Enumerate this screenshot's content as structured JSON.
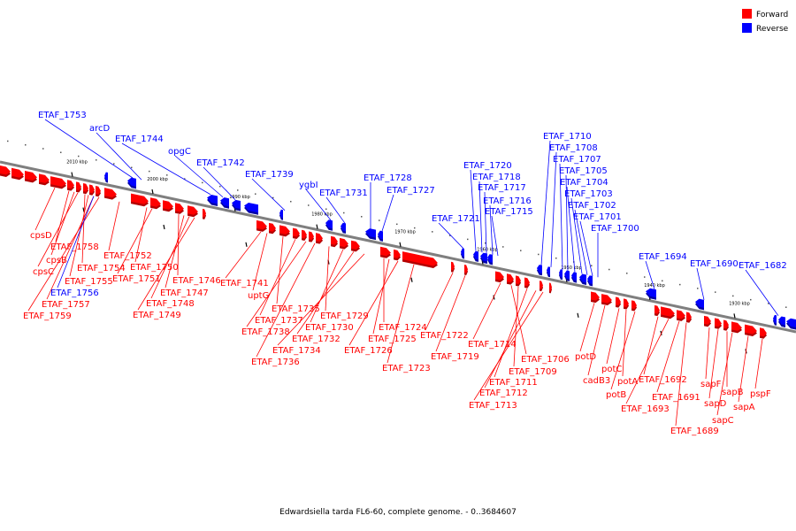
{
  "caption": "Edwardsiella tarda FL6-60, complete genome. - 0..3684607",
  "legend": [
    {
      "label": "Forward",
      "color": "#ff0000"
    },
    {
      "label": "Reverse",
      "color": "#0000ff"
    }
  ],
  "colors": {
    "forward": "#ff0000",
    "reverse": "#0000ff",
    "axis": "#7f7f7f"
  },
  "scale_labels": [
    "2010 kbp",
    "2000 kbp",
    "1990 kbp",
    "1980 kbp",
    "1970 kbp",
    "1960 kbp",
    "1950 kbp",
    "1940 kbp",
    "1930 kbp"
  ],
  "forward_labels": [
    "cpsD",
    "ETAF_1758",
    "cpsB",
    "cpsC",
    "ETAF_1754",
    "ETAF_1755",
    "ETAF_1757",
    "ETAF_1759",
    "ETAF_1752",
    "ETAF_1750",
    "ETAF_1751",
    "ETAF_1746",
    "ETAF_1747",
    "ETAF_1748",
    "ETAF_1749",
    "ETAF_1741",
    "uptG",
    "ETAF_1735",
    "ETAF_1737",
    "ETAF_1738",
    "ETAF_1736",
    "ETAF_1729",
    "ETAF_1730",
    "ETAF_1732",
    "ETAF_1734",
    "ETAF_1724",
    "ETAF_1725",
    "ETAF_1726",
    "ETAF_1723",
    "ETAF_1722",
    "ETAF_1719",
    "ETAF_1714",
    "ETAF_1706",
    "ETAF_1709",
    "ETAF_1711",
    "ETAF_1712",
    "ETAF_1713",
    "potD",
    "cadB3",
    "potC",
    "potA",
    "potB",
    "ETAF_1692",
    "ETAF_1693",
    "ETAF_1691",
    "ETAF_1689",
    "sapF",
    "sapD",
    "sapB",
    "sapC",
    "sapA",
    "pspF"
  ],
  "reverse_labels": [
    "ETAF_1753",
    "arcD",
    "ETAF_1744",
    "opgC",
    "ETAF_1742",
    "ETAF_1739",
    "ygbI",
    "ETAF_1731",
    "ETAF_1728",
    "ETAF_1727",
    "ETAF_1721",
    "ETAF_1720",
    "ETAF_1718",
    "ETAF_1717",
    "ETAF_1716",
    "ETAF_1715",
    "ETAF_1710",
    "ETAF_1708",
    "ETAF_1707",
    "ETAF_1705",
    "ETAF_1704",
    "ETAF_1703",
    "ETAF_1702",
    "ETAF_1701",
    "ETAF_1700",
    "ETAF_1694",
    "ETAF_1690",
    "ETAF_1682",
    "ETAF_1756"
  ]
}
